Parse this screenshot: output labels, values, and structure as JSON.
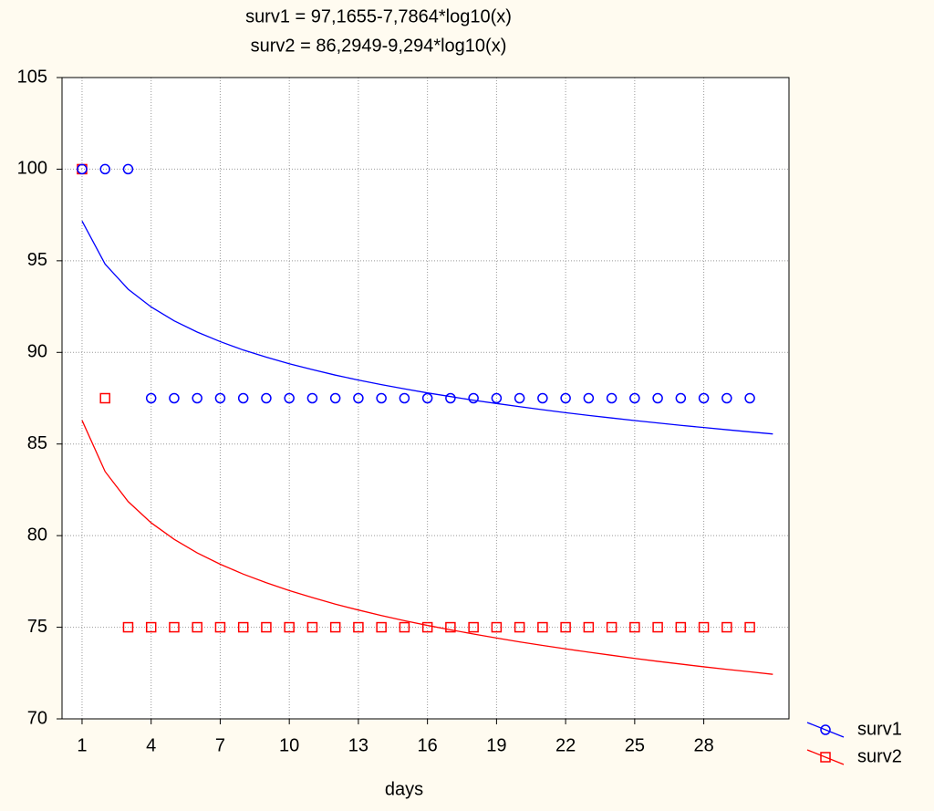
{
  "chart_data": {
    "type": "scatter",
    "title": [
      "surv1 = 97,1655-7,7864*log10(x)",
      "surv2 = 86,2949-9,294*log10(x)"
    ],
    "x_label": "days",
    "x": [
      1,
      2,
      3,
      4,
      5,
      6,
      7,
      8,
      9,
      10,
      11,
      12,
      13,
      14,
      15,
      16,
      17,
      18,
      19,
      20,
      21,
      22,
      23,
      24,
      25,
      26,
      27,
      28,
      29,
      30
    ],
    "fit_x": [
      1,
      2,
      3,
      4,
      5,
      6,
      7,
      8,
      9,
      10,
      11,
      12,
      13,
      14,
      15,
      16,
      17,
      18,
      19,
      20,
      21,
      22,
      23,
      24,
      25,
      26,
      27,
      28,
      29,
      30,
      31
    ],
    "series": [
      {
        "name": "surv1",
        "color": "#0000ff",
        "marker": "circle",
        "values": [
          100,
          100,
          100,
          87.5,
          87.5,
          87.5,
          87.5,
          87.5,
          87.5,
          87.5,
          87.5,
          87.5,
          87.5,
          87.5,
          87.5,
          87.5,
          87.5,
          87.5,
          87.5,
          87.5,
          87.5,
          87.5,
          87.5,
          87.5,
          87.5,
          87.5,
          87.5,
          87.5,
          87.5,
          87.5
        ],
        "fit_values": [
          97.17,
          94.82,
          93.45,
          92.48,
          91.72,
          91.11,
          90.59,
          90.13,
          89.74,
          89.38,
          89.06,
          88.76,
          88.49,
          88.24,
          88.01,
          87.79,
          87.59,
          87.39,
          87.21,
          87.04,
          86.87,
          86.71,
          86.56,
          86.42,
          86.28,
          86.15,
          86.02,
          85.9,
          85.78,
          85.66,
          85.55
        ]
      },
      {
        "name": "surv2",
        "color": "#ff0000",
        "marker": "square",
        "values": [
          100,
          87.5,
          75,
          75,
          75,
          75,
          75,
          75,
          75,
          75,
          75,
          75,
          75,
          75,
          75,
          75,
          75,
          75,
          75,
          75,
          75,
          75,
          75,
          75,
          75,
          75,
          75,
          75,
          75,
          75
        ],
        "fit_values": [
          86.29,
          83.5,
          81.86,
          80.7,
          79.8,
          79.06,
          78.44,
          77.9,
          77.43,
          77.0,
          76.62,
          76.26,
          75.94,
          75.64,
          75.36,
          75.1,
          74.86,
          74.63,
          74.41,
          74.2,
          74.01,
          73.82,
          73.64,
          73.47,
          73.3,
          73.14,
          72.99,
          72.84,
          72.7,
          72.57,
          72.43
        ]
      }
    ],
    "xlim": [
      0.13,
      31.7
    ],
    "xticks": [
      1,
      4,
      7,
      10,
      13,
      16,
      19,
      22,
      25,
      28
    ],
    "ylim": [
      70,
      105
    ],
    "yticks": [
      70,
      75,
      80,
      85,
      90,
      95,
      100,
      105
    ],
    "grid": true,
    "legend": "bottom-right"
  }
}
